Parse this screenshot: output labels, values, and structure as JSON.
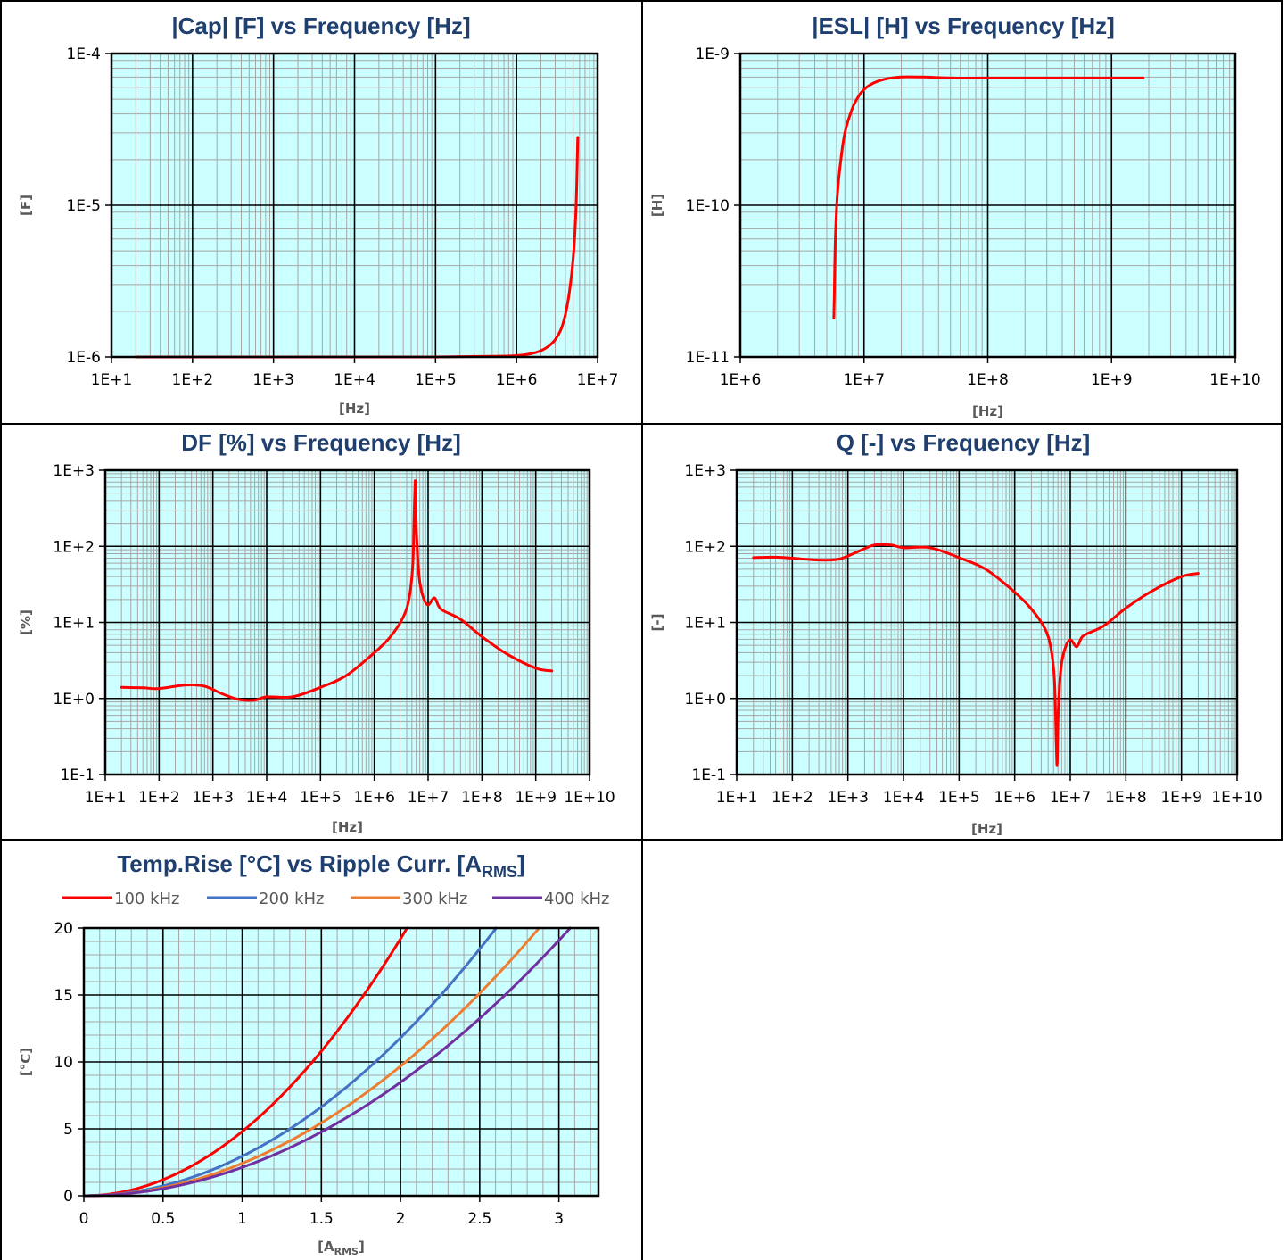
{
  "colors": {
    "plot_bg": "#ccffff",
    "minor_grid": "#a6a6a6",
    "major_grid": "#000000",
    "title": "#1f3f6e",
    "axis_label": "#595959",
    "frame": "#000000"
  },
  "chart_data": [
    {
      "id": "cap",
      "type": "line",
      "title": "|Cap| [F] vs Frequency [Hz]",
      "xlabel": "[Hz]",
      "ylabel": "[F]",
      "xscale": "log",
      "yscale": "log",
      "xlim": [
        10,
        10000000
      ],
      "ylim": [
        1e-06,
        0.0001
      ],
      "grid": true,
      "xticks": [
        "1E+1",
        "1E+2",
        "1E+3",
        "1E+4",
        "1E+5",
        "1E+6",
        "1E+7"
      ],
      "yticks": [
        "1E-6",
        "1E-5",
        "1E-4"
      ],
      "series": [
        {
          "color": "#ff0000",
          "x": [
            20,
            100,
            1000,
            10000,
            100000,
            500000,
            1000000,
            1500000,
            2000000,
            2500000,
            3000000,
            3500000,
            4000000,
            4500000,
            5000000,
            5400000,
            5700000
          ],
          "y": [
            1e-06,
            1e-06,
            1e-06,
            1e-06,
            1e-06,
            1.01e-06,
            1.02e-06,
            1.05e-06,
            1.1e-06,
            1.18e-06,
            1.3e-06,
            1.5e-06,
            1.9e-06,
            2.7e-06,
            4.5e-06,
            9e-06,
            2.8e-05
          ]
        }
      ]
    },
    {
      "id": "esl",
      "type": "line",
      "title": "|ESL| [H] vs Frequency [Hz]",
      "xlabel": "[Hz]",
      "ylabel": "[H]",
      "xscale": "log",
      "yscale": "log",
      "xlim": [
        1000000,
        10000000000
      ],
      "ylim": [
        1e-11,
        1e-09
      ],
      "grid": true,
      "xticks": [
        "1E+6",
        "1E+7",
        "1E+8",
        "1E+9",
        "1E+10"
      ],
      "yticks": [
        "1E-11",
        "1E-10",
        "1E-9"
      ],
      "series": [
        {
          "color": "#ff0000",
          "x": [
            5700000,
            5750000,
            5800000,
            5900000,
            6100000,
            6500000,
            7000000,
            8000000,
            9000000,
            10000000,
            12000000,
            15000000,
            20000000,
            30000000,
            50000000,
            100000000,
            500000000,
            1000000000,
            1800000000
          ],
          "y": [
            1.8e-11,
            2.5e-11,
            4e-11,
            7e-11,
            1.2e-10,
            2e-10,
            3e-10,
            4.3e-10,
            5.2e-10,
            5.8e-10,
            6.4e-10,
            6.8e-10,
            7e-10,
            7e-10,
            6.9e-10,
            6.9e-10,
            6.9e-10,
            6.9e-10,
            6.9e-10
          ]
        }
      ]
    },
    {
      "id": "df",
      "type": "line",
      "title": "DF [%] vs Frequency [Hz]",
      "xlabel": "[Hz]",
      "ylabel": "[%]",
      "xscale": "log",
      "yscale": "log",
      "xlim": [
        10,
        10000000000
      ],
      "ylim": [
        0.1,
        1000
      ],
      "grid": true,
      "xticks": [
        "1E+1",
        "1E+2",
        "1E+3",
        "1E+4",
        "1E+5",
        "1E+6",
        "1E+7",
        "1E+8",
        "1E+9",
        "1E+10"
      ],
      "yticks": [
        "1E-1",
        "1E+0",
        "1E+1",
        "1E+2",
        "1E+3"
      ],
      "series": [
        {
          "color": "#ff0000",
          "x": [
            20,
            50,
            100,
            300,
            700,
            1500,
            3000,
            6000,
            10000,
            30000,
            100000,
            300000,
            1000000,
            2000000,
            3500000,
            4500000,
            5200000,
            5600000,
            5800000,
            6100000,
            6800000,
            8000000,
            10000000,
            13000000,
            16000000,
            20000000,
            40000000,
            100000000,
            300000000,
            1000000000,
            2000000000
          ],
          "y": [
            1.4,
            1.38,
            1.35,
            1.5,
            1.45,
            1.15,
            0.97,
            0.95,
            1.05,
            1.05,
            1.4,
            2.0,
            4.0,
            6.5,
            12,
            22,
            60,
            400,
            700,
            150,
            40,
            22,
            17,
            21,
            16,
            14,
            11,
            6.5,
            3.8,
            2.5,
            2.3
          ]
        }
      ]
    },
    {
      "id": "q",
      "type": "line",
      "title": "Q [-] vs Frequency [Hz]",
      "xlabel": "[Hz]",
      "ylabel": "[-]",
      "xscale": "log",
      "yscale": "log",
      "xlim": [
        10,
        10000000000
      ],
      "ylim": [
        0.1,
        1000
      ],
      "grid": true,
      "xticks": [
        "1E+1",
        "1E+2",
        "1E+3",
        "1E+4",
        "1E+5",
        "1E+6",
        "1E+7",
        "1E+8",
        "1E+9",
        "1E+10"
      ],
      "yticks": [
        "1E-1",
        "1E+0",
        "1E+1",
        "1E+2",
        "1E+3"
      ],
      "series": [
        {
          "color": "#ff0000",
          "x": [
            20,
            50,
            100,
            300,
            700,
            1500,
            3000,
            6000,
            10000,
            30000,
            100000,
            300000,
            1000000,
            2000000,
            3500000,
            4500000,
            5200000,
            5600000,
            5800000,
            6100000,
            6800000,
            8000000,
            10000000,
            13000000,
            16000000,
            20000000,
            40000000,
            100000000,
            300000000,
            1000000000,
            2000000000
          ],
          "y": [
            71,
            72,
            70,
            66,
            68,
            85,
            104,
            104,
            96,
            96,
            71,
            50,
            25,
            15,
            8.3,
            4.5,
            1.7,
            0.25,
            0.14,
            0.7,
            2.5,
            4.5,
            5.9,
            4.8,
            6.3,
            7.1,
            9,
            15.4,
            26,
            40,
            44
          ]
        }
      ]
    },
    {
      "id": "temp",
      "type": "line",
      "title": "Temp.Rise [°C] vs Ripple Curr. [A",
      "title_sub": "RMS",
      "title_end": "]",
      "xlabel": "[A",
      "xlabel_sub": "RMS",
      "xlabel_end": "]",
      "ylabel": "[°C]",
      "xscale": "linear",
      "yscale": "linear",
      "xlim": [
        0,
        3.25
      ],
      "ylim": [
        0,
        20
      ],
      "grid": true,
      "legend": "top",
      "xticks": [
        "0",
        "0.5",
        "1",
        "1.5",
        "2",
        "2.5",
        "3"
      ],
      "xtick_values": [
        0,
        0.5,
        1,
        1.5,
        2,
        2.5,
        3
      ],
      "yticks": [
        "0",
        "5",
        "10",
        "15",
        "20"
      ],
      "ytick_values": [
        0,
        5,
        10,
        15,
        20
      ],
      "series": [
        {
          "name": "100 kHz",
          "color": "#ff0000",
          "k": 4.8
        },
        {
          "name": "200 kHz",
          "color": "#4472c4",
          "k": 2.95
        },
        {
          "name": "300 kHz",
          "color": "#ed7d31",
          "k": 2.42
        },
        {
          "name": "400 kHz",
          "color": "#7030a0",
          "k": 2.12
        }
      ]
    }
  ]
}
